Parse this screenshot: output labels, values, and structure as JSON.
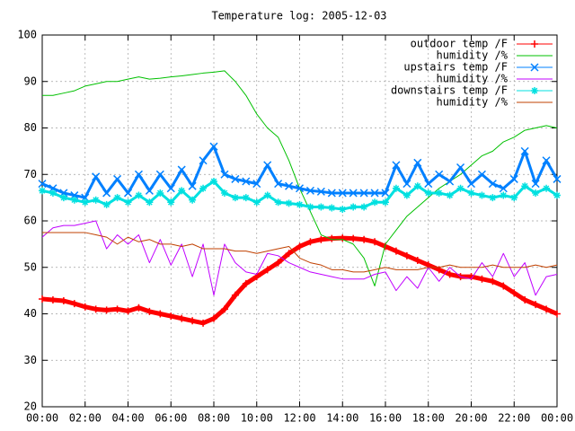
{
  "chart_data": {
    "type": "line",
    "title": "Temperature log: 2005-12-03",
    "x": [
      0,
      0.5,
      1,
      1.5,
      2,
      2.5,
      3,
      3.5,
      4,
      4.5,
      5,
      5.5,
      6,
      6.5,
      7,
      7.5,
      8,
      8.5,
      9,
      9.5,
      10,
      10.5,
      11,
      11.5,
      12,
      12.5,
      13,
      13.5,
      14,
      14.5,
      15,
      15.5,
      16,
      16.5,
      17,
      17.5,
      18,
      18.5,
      19,
      19.5,
      20,
      20.5,
      21,
      21.5,
      22,
      22.5,
      23,
      23.5,
      24
    ],
    "xlim": [
      0,
      24
    ],
    "xticks": [
      {
        "value": 0,
        "label": "00:00"
      },
      {
        "value": 2,
        "label": "02:00"
      },
      {
        "value": 4,
        "label": "04:00"
      },
      {
        "value": 6,
        "label": "06:00"
      },
      {
        "value": 8,
        "label": "08:00"
      },
      {
        "value": 10,
        "label": "10:00"
      },
      {
        "value": 12,
        "label": "12:00"
      },
      {
        "value": 14,
        "label": "14:00"
      },
      {
        "value": 16,
        "label": "16:00"
      },
      {
        "value": 18,
        "label": "18:00"
      },
      {
        "value": 20,
        "label": "20:00"
      },
      {
        "value": 22,
        "label": "22:00"
      },
      {
        "value": 24,
        "label": "00:00"
      }
    ],
    "ylim": [
      20,
      100
    ],
    "yticks": [
      20,
      30,
      40,
      50,
      60,
      70,
      80,
      90,
      100
    ],
    "grid": true,
    "legend": "top right",
    "series": [
      {
        "name": "outdoor temp /F",
        "color": "#ff0000",
        "marker": "+",
        "values": [
          43.2,
          43,
          42.8,
          42.2,
          41.5,
          41,
          40.8,
          41,
          40.6,
          41.3,
          40.5,
          40,
          39.5,
          39,
          38.5,
          38,
          39,
          41,
          44,
          46.5,
          48,
          49.5,
          51,
          53,
          54.5,
          55.5,
          56,
          56.2,
          56.3,
          56.2,
          56,
          55.5,
          54.5,
          53.5,
          52.5,
          51.5,
          50.5,
          49.5,
          48.5,
          48,
          48,
          47.5,
          47,
          46,
          44.5,
          43,
          42,
          41,
          40
        ]
      },
      {
        "name": "humidity /%",
        "color": "#00c000",
        "values": [
          87,
          87,
          87.5,
          88,
          89,
          89.5,
          90,
          90,
          90.5,
          91,
          90.5,
          90.7,
          91,
          91.2,
          91.5,
          91.8,
          92,
          92.3,
          90,
          87,
          83,
          80,
          78,
          73,
          67,
          62,
          57,
          56,
          56,
          55,
          52,
          46,
          55,
          58,
          61,
          63,
          65,
          67,
          68.5,
          70,
          72,
          74,
          75,
          77,
          78,
          79.5,
          80,
          80.5,
          80
        ]
      },
      {
        "name": "upstairs temp /F",
        "color": "#0080ff",
        "marker": "x",
        "values": [
          68,
          67,
          66,
          65.5,
          65,
          69.5,
          66,
          69,
          66,
          70,
          66.5,
          70,
          67,
          71,
          67.5,
          73,
          76,
          70,
          69,
          68.5,
          68,
          72,
          68,
          67.5,
          67,
          66.5,
          66.3,
          66,
          66,
          66,
          66,
          66,
          66,
          72,
          68,
          72.5,
          68,
          70,
          68.5,
          71.5,
          68,
          70,
          68,
          67,
          69,
          75,
          68,
          73,
          69
        ]
      },
      {
        "name": "humidity /%",
        "color": "#c000ff",
        "values": [
          56.5,
          58.5,
          59,
          59,
          59.5,
          60,
          54,
          57,
          55,
          57,
          51,
          56,
          50.5,
          55,
          48,
          55,
          44,
          55,
          51,
          49,
          48.5,
          53,
          52.5,
          51,
          50,
          49,
          48.5,
          48,
          47.5,
          47.5,
          47.5,
          48.5,
          49,
          45,
          48,
          45.5,
          50,
          47,
          50,
          48,
          47.5,
          51,
          48,
          53,
          48,
          51,
          44,
          48,
          48.5
        ]
      },
      {
        "name": "downstairs temp /F",
        "color": "#00e0e0",
        "marker": "*",
        "values": [
          66.5,
          66,
          65,
          64.5,
          64,
          64.5,
          63.5,
          65,
          64,
          65.5,
          64,
          66,
          64,
          66.5,
          64.5,
          67,
          68.5,
          66,
          65,
          65,
          64,
          65.5,
          64,
          63.8,
          63.5,
          63,
          63,
          62.8,
          62.5,
          63,
          63,
          64,
          64,
          67,
          65.5,
          67.5,
          66,
          66,
          65.5,
          67,
          66,
          65.5,
          65,
          65.5,
          65,
          67.5,
          66,
          67,
          65.5
        ]
      },
      {
        "name": "humidity /%",
        "color": "#c04000",
        "values": [
          57.5,
          57.5,
          57.5,
          57.5,
          57.5,
          57,
          56.5,
          55,
          56.5,
          55.5,
          56,
          55,
          55,
          54.5,
          55,
          54,
          54,
          54,
          53.5,
          53.5,
          53,
          53.5,
          54,
          54.5,
          52,
          51,
          50.5,
          49.5,
          49.5,
          49,
          49,
          49.5,
          50,
          49.5,
          49.5,
          49.5,
          50,
          50,
          50.5,
          50,
          50,
          50,
          50.5,
          50,
          50,
          50,
          50.5,
          50,
          50.5
        ]
      }
    ]
  }
}
